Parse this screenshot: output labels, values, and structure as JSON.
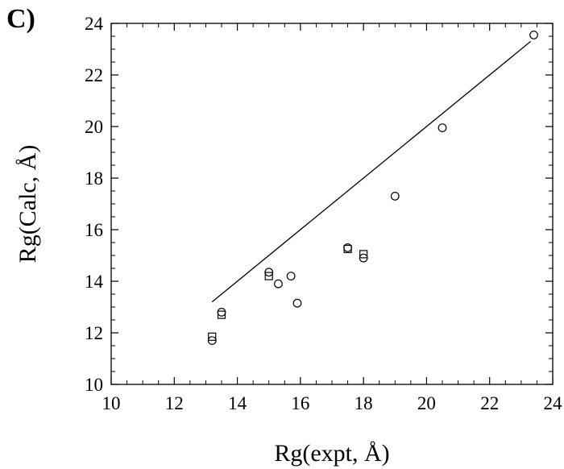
{
  "panel_label": "C)",
  "chart_data": {
    "type": "scatter",
    "xlabel": "Rg(expt, Å)",
    "ylabel": "Rg(Calc, Å)",
    "xlim": [
      10,
      24
    ],
    "ylim": [
      10,
      24
    ],
    "xticks": [
      10,
      12,
      14,
      16,
      18,
      20,
      22,
      24
    ],
    "yticks": [
      10,
      12,
      14,
      16,
      18,
      20,
      22,
      24
    ],
    "grid": false,
    "series": [
      {
        "marker": "circle",
        "points": [
          [
            13.2,
            11.7
          ],
          [
            13.5,
            12.8
          ],
          [
            15.0,
            14.35
          ],
          [
            15.3,
            13.9
          ],
          [
            15.7,
            14.2
          ],
          [
            15.9,
            13.15
          ],
          [
            17.5,
            15.3
          ],
          [
            18.0,
            14.9
          ],
          [
            19.0,
            17.3
          ],
          [
            20.5,
            19.95
          ],
          [
            23.4,
            23.55
          ]
        ]
      },
      {
        "marker": "square",
        "points": [
          [
            13.2,
            11.85
          ],
          [
            13.5,
            12.7
          ],
          [
            15.0,
            14.2
          ],
          [
            17.5,
            15.25
          ],
          [
            18.0,
            15.05
          ]
        ]
      }
    ],
    "line": {
      "x": [
        13.2,
        23.3
      ],
      "y": [
        13.2,
        23.3
      ]
    },
    "colors": {
      "marker_stroke": "#000000",
      "line": "#000000",
      "axis": "#000000"
    }
  }
}
